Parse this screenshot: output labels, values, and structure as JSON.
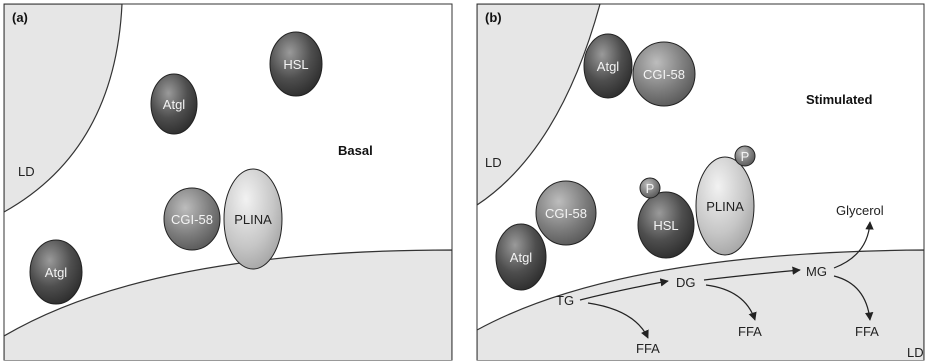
{
  "panel_a": {
    "tag": "(a)",
    "state": "Basal",
    "lipid_droplet_label": "LD",
    "proteins": {
      "hsl": "HSL",
      "atgl_top": "Atgl",
      "cgi58": "CGI-58",
      "plina": "PLINA",
      "atgl_bottom": "Atgl"
    }
  },
  "panel_b": {
    "tag": "(b)",
    "state": "Stimulated",
    "lipid_droplet_label_left": "LD",
    "lipid_droplet_label_right": "LD",
    "proteins": {
      "atgl_top": "Atgl",
      "cgi58_top": "CGI-58",
      "cgi58": "CGI-58",
      "atgl": "Atgl",
      "hsl": "HSL",
      "plina": "PLINA",
      "phospho_hsl": "P",
      "phospho_plina": "P"
    },
    "metabolites": {
      "tg": "TG",
      "dg": "DG",
      "mg": "MG",
      "glycerol": "Glycerol",
      "ffa_1": "FFA",
      "ffa_2": "FFA",
      "ffa_3": "FFA"
    }
  },
  "colors": {
    "panel_bg": "#ffffff",
    "lipid_droplet_fill": "#e6e6e6",
    "lipid_droplet_stroke": "#333333",
    "protein_dark": "#4a4a4a",
    "protein_mid": "#7a7a7a",
    "plina_fill": "#c8c8c8"
  }
}
